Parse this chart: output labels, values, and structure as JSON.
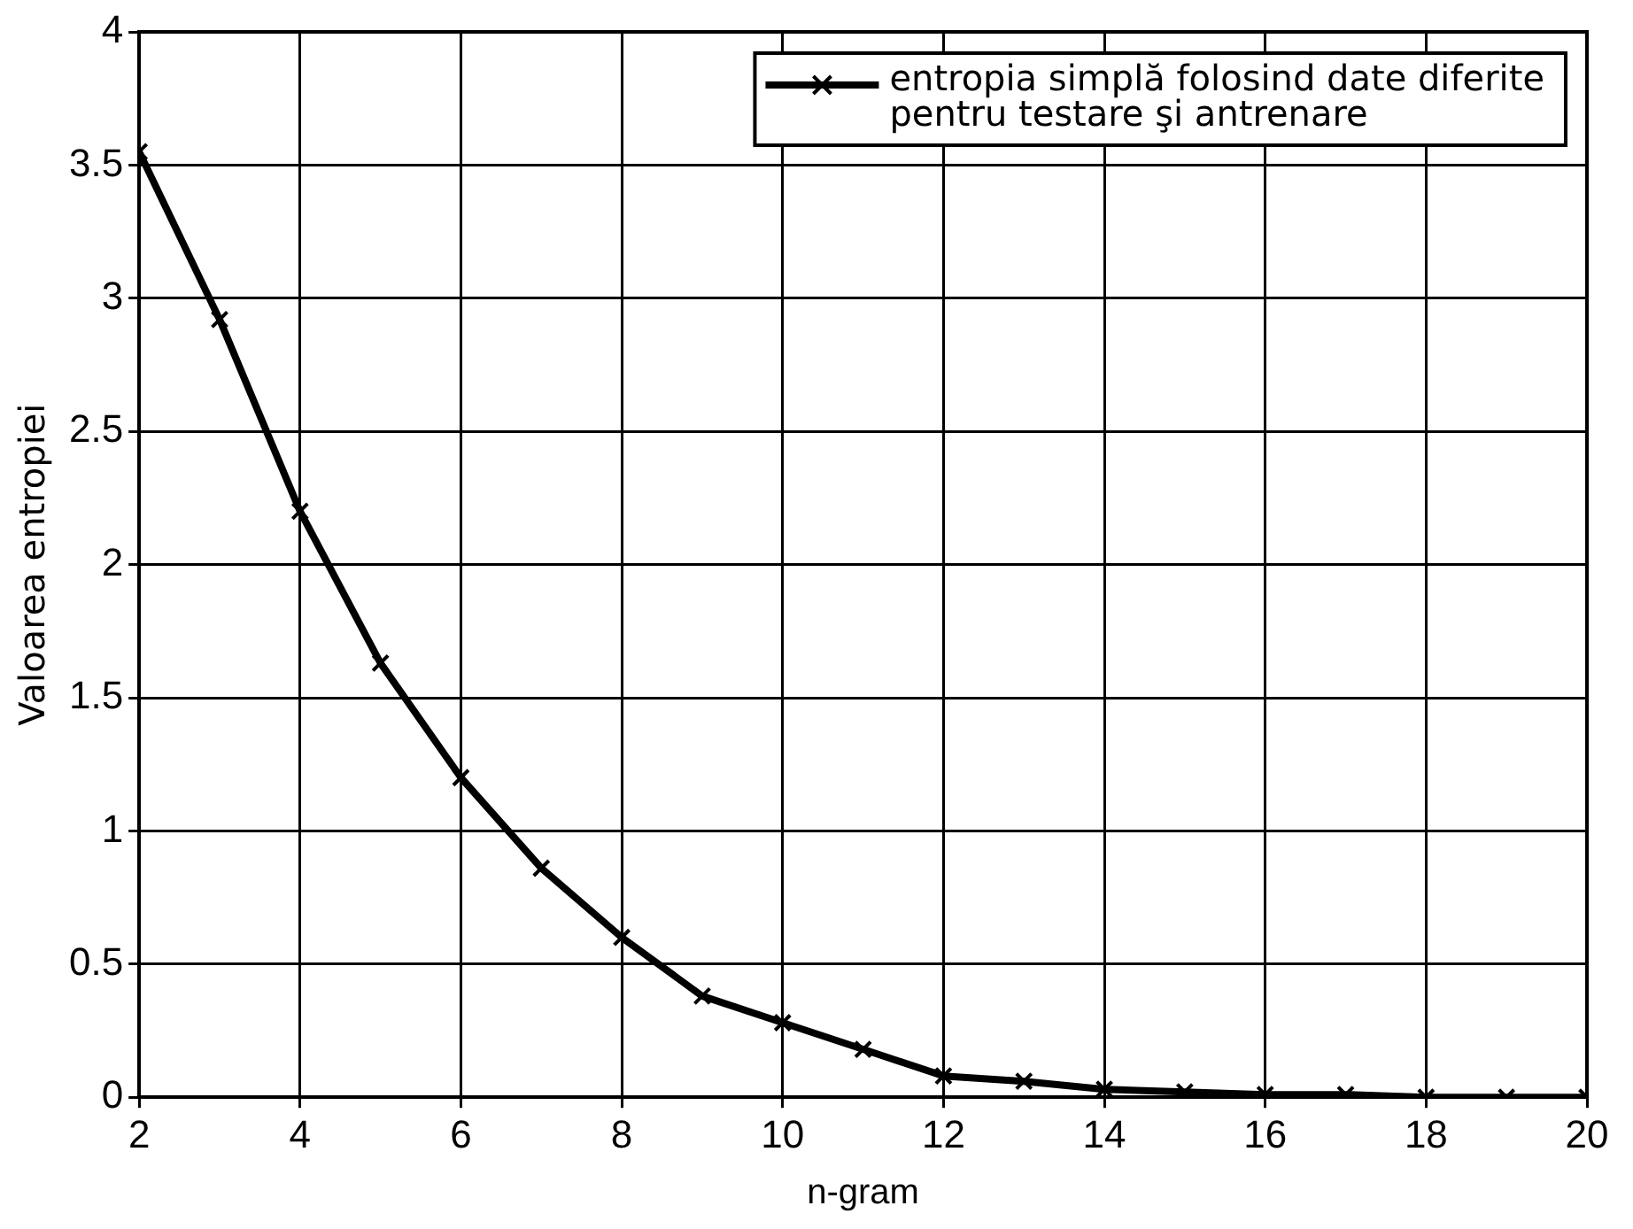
{
  "chart_data": {
    "type": "line",
    "xlabel": "n-gram",
    "ylabel": "Valoarea entropiei",
    "x": [
      2,
      3,
      4,
      5,
      6,
      7,
      8,
      9,
      10,
      11,
      12,
      13,
      14,
      15,
      16,
      17,
      18,
      19,
      20
    ],
    "series": [
      {
        "name": "entropia simplă folosind date diferite pentru testare şi antrenare",
        "color": "#000000",
        "values": [
          3.55,
          2.92,
          2.2,
          1.63,
          1.2,
          0.86,
          0.6,
          0.38,
          0.28,
          0.18,
          0.08,
          0.06,
          0.03,
          0.02,
          0.01,
          0.01,
          0,
          0,
          0
        ]
      }
    ],
    "xlim": [
      2,
      20
    ],
    "xticks": [
      2,
      4,
      6,
      8,
      10,
      12,
      14,
      16,
      18,
      20
    ],
    "ylim": [
      0,
      4
    ],
    "yticks": [
      0,
      0.5,
      1,
      1.5,
      2,
      2.5,
      3,
      3.5,
      4
    ],
    "grid": true,
    "legend": "top right",
    "marker": "cross",
    "line_style": "solid"
  }
}
